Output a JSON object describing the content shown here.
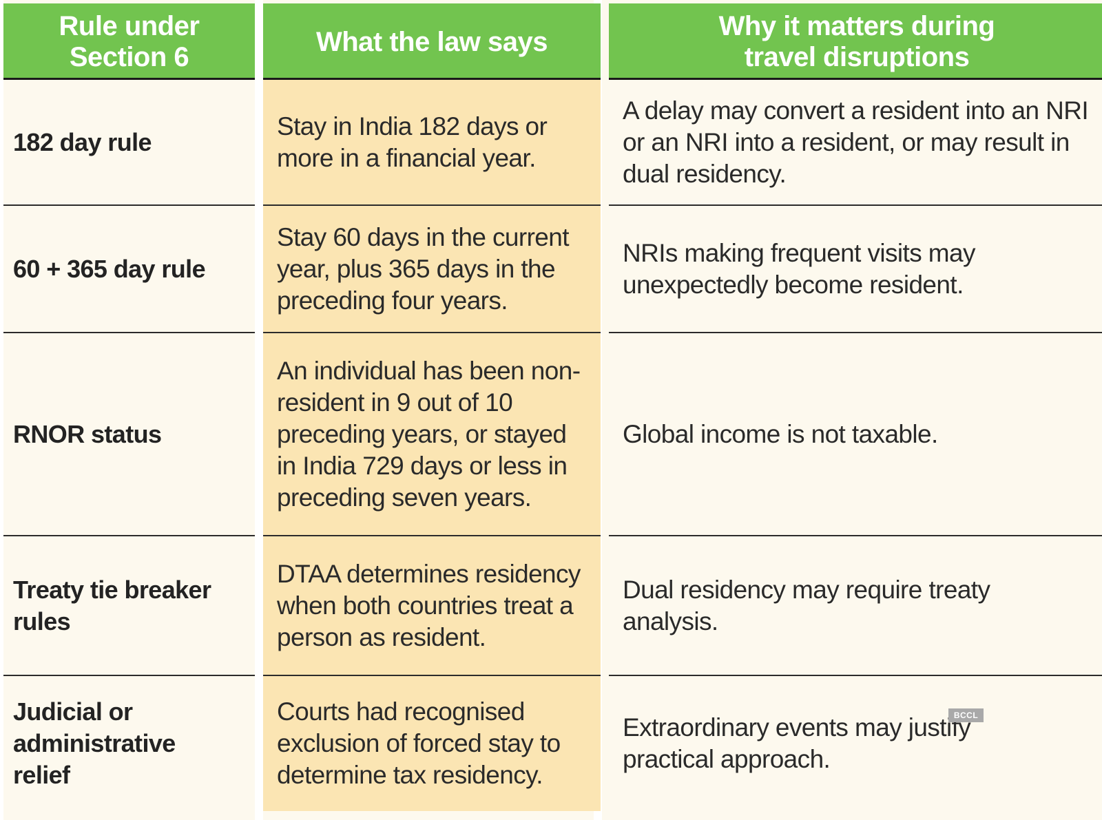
{
  "headers": {
    "col1": "Rule under Section 6",
    "col2": "What the law says",
    "col3": "Why it matters during travel disruptions"
  },
  "rows": [
    {
      "rule": "182 day rule",
      "law": "Stay in India 182 days or more in a financial year.",
      "why": "A delay may convert a resident into an NRI or an NRI into a resident, or may result in dual residency."
    },
    {
      "rule": "60 + 365 day rule",
      "law": "Stay 60 days in the current year, plus 365 days in the preceding four years.",
      "why": "NRIs making frequent visits may unexpectedly become resident."
    },
    {
      "rule": "RNOR status",
      "law": "An individual has been non-resident in 9 out of 10 preceding years, or stayed in India 729 days or less in preceding seven years.",
      "why": "Global income is not taxable."
    },
    {
      "rule": "Treaty tie breaker rules",
      "law": "DTAA determines residency when both countries treat a person as resident.",
      "why": "Dual residency may require treaty analysis."
    },
    {
      "rule": "Judicial or administrative relief",
      "law": "Courts had recognised exclusion of forced stay to determine tax residency.",
      "why": "Extraordinary events may justify practical approach."
    }
  ],
  "watermark": "BCCL",
  "colors": {
    "header_green": "#72c44f",
    "middle_column": "#fbe5b3",
    "side_columns": "#fdf9ee"
  }
}
